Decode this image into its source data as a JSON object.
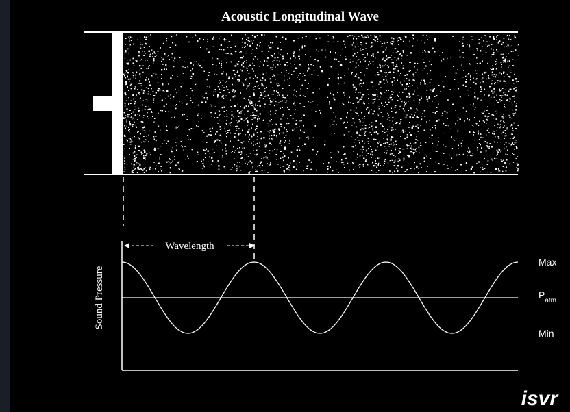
{
  "title": "Acoustic Longitudinal Wave",
  "wavelength_label": "Wavelength",
  "y_axis_label": "Sound Pressure",
  "levels": {
    "max": "Max",
    "p_main": "P",
    "p_sub": "atm",
    "min": "Min"
  },
  "logo": "isvr",
  "colors": {
    "background": "#000000",
    "frame": "#1a1e26",
    "foreground": "#ffffff"
  },
  "wave": {
    "cycles_shown": 3.0,
    "crests_at_start_and_end": true
  }
}
